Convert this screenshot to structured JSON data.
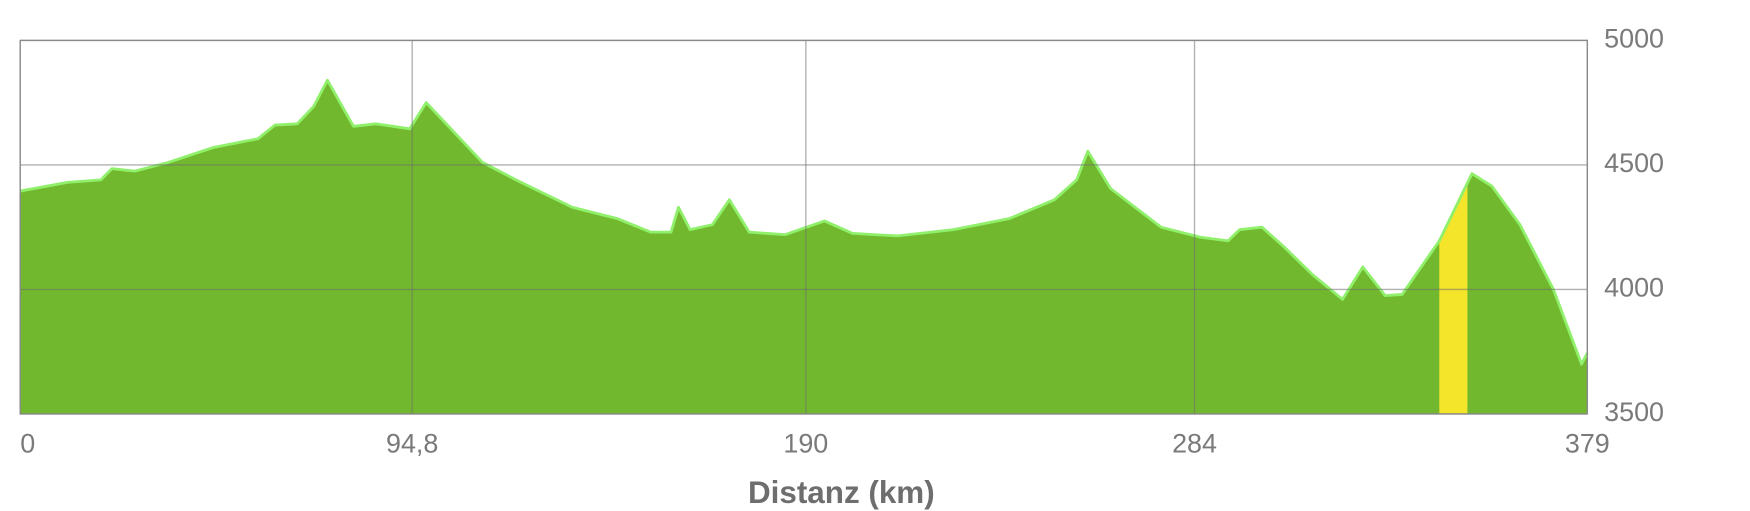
{
  "chart_data": {
    "type": "area",
    "x_label": "Distanz (km)",
    "x": [
      0,
      11.4,
      19.5,
      22.2,
      27.7,
      35.8,
      46.7,
      57.5,
      61.6,
      67,
      71,
      74.3,
      80.6,
      86,
      94.2,
      98.2,
      105,
      111.8,
      119.9,
      133.5,
      144.3,
      152.5,
      157.4,
      159.2,
      162,
      167.4,
      171.5,
      176.3,
      185,
      194.5,
      201.3,
      212.2,
      225.7,
      239.3,
      250.1,
      255.5,
      258.2,
      263.7,
      275.9,
      285.3,
      292.1,
      294.9,
      300.3,
      305.7,
      312.5,
      319.8,
      324.7,
      330.1,
      334.2,
      343.2,
      351.1,
      355.9,
      362.7,
      370.8,
      377.6,
      379
    ],
    "values": [
      4395,
      4430,
      4440,
      4485,
      4475,
      4510,
      4570,
      4605,
      4660,
      4665,
      4735,
      4840,
      4655,
      4665,
      4645,
      4750,
      4630,
      4510,
      4440,
      4330,
      4285,
      4230,
      4230,
      4330,
      4240,
      4260,
      4360,
      4230,
      4220,
      4275,
      4225,
      4215,
      4240,
      4285,
      4360,
      4440,
      4555,
      4405,
      4250,
      4210,
      4195,
      4240,
      4250,
      4170,
      4060,
      3960,
      4090,
      3975,
      3980,
      4195,
      4465,
      4415,
      4260,
      4000,
      3700,
      3745
    ],
    "color": "#72b82e",
    "line_color": "#90f06c",
    "highlight": {
      "x": [
        343.2,
        350.0
      ],
      "color": "#f4e42a"
    },
    "xlim": [
      0,
      379
    ],
    "xticks": [
      0,
      {
        "value": 94.8,
        "label": "94,8"
      },
      190,
      284,
      379
    ],
    "ylim": [
      3500,
      5000
    ],
    "yticks": [
      3500,
      4000,
      4500,
      5000
    ],
    "y_axis_side": "right",
    "grid": true
  }
}
